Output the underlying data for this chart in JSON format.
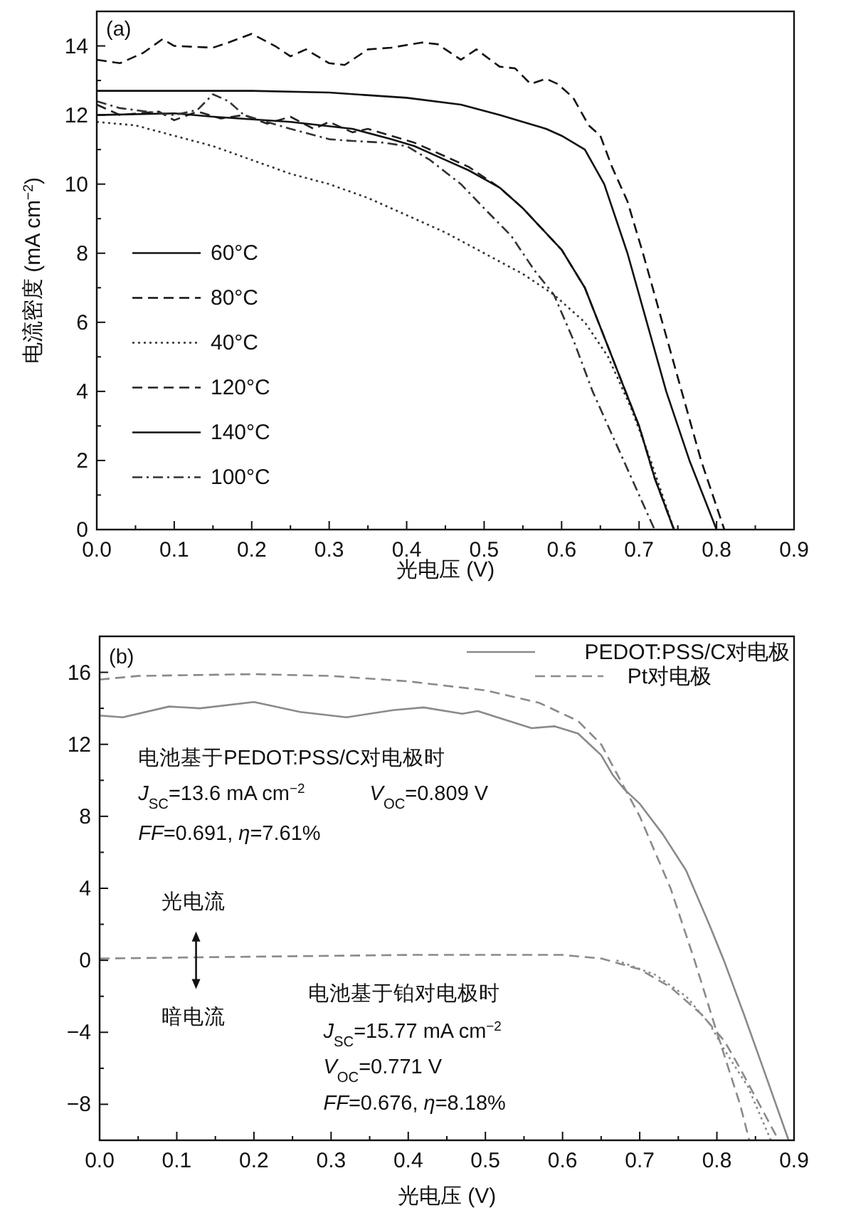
{
  "chart_data": [
    {
      "type": "line",
      "xlabel": "光电压 (V)",
      "ylabel": "电流密度 (mA cm$^{−2}$)",
      "annotations": [
        "(a)"
      ],
      "xlim": [
        0,
        0.9
      ],
      "ylim": [
        0,
        15
      ],
      "xticks": [
        {
          "value": 0,
          "label": "0.0"
        },
        0.1,
        0.2,
        0.3,
        0.4,
        0.5,
        0.6,
        0.7,
        0.8,
        0.9
      ],
      "yticks": [
        0,
        2,
        4,
        6,
        8,
        10,
        12,
        14
      ],
      "legend": "left",
      "grid": false,
      "marker": "none",
      "series": [
        {
          "name": "60°C",
          "color": "#111111",
          "line_style": "solid",
          "x": [
            0,
            0.1,
            0.2,
            0.3,
            0.4,
            0.47,
            0.52,
            0.55,
            0.58,
            0.6,
            0.63,
            0.655,
            0.685,
            0.71,
            0.735,
            0.765,
            0.8
          ],
          "values": [
            12.7,
            12.7,
            12.7,
            12.65,
            12.5,
            12.3,
            12.0,
            11.8,
            11.6,
            11.4,
            11.0,
            10.0,
            8.0,
            6.0,
            4.0,
            2.0,
            0
          ]
        },
        {
          "name": "80°C",
          "color": "#111111",
          "line_style": "dashed",
          "x": [
            0,
            0.03,
            0.06,
            0.085,
            0.1,
            0.15,
            0.17,
            0.2,
            0.23,
            0.25,
            0.27,
            0.3,
            0.32,
            0.35,
            0.38,
            0.42,
            0.44,
            0.47,
            0.49,
            0.52,
            0.54,
            0.56,
            0.58,
            0.595,
            0.615,
            0.635,
            0.65,
            0.665,
            0.685,
            0.705,
            0.73,
            0.755,
            0.78,
            0.81
          ],
          "values": [
            13.6,
            13.5,
            13.8,
            14.2,
            14.0,
            13.95,
            14.1,
            14.35,
            14.0,
            13.7,
            13.9,
            13.5,
            13.45,
            13.9,
            13.95,
            14.1,
            14.05,
            13.6,
            13.9,
            13.4,
            13.35,
            12.9,
            13.05,
            12.9,
            12.5,
            11.7,
            11.4,
            10.5,
            9.5,
            8.0,
            6.0,
            4.0,
            2.0,
            0
          ]
        },
        {
          "name": "40°C",
          "color": "#333333",
          "line_style": "dotted",
          "x": [
            0,
            0.05,
            0.1,
            0.15,
            0.2,
            0.25,
            0.3,
            0.35,
            0.4,
            0.45,
            0.5,
            0.55,
            0.59,
            0.63,
            0.66,
            0.69,
            0.715,
            0.745
          ],
          "values": [
            11.8,
            11.7,
            11.4,
            11.1,
            10.7,
            10.3,
            10.0,
            9.6,
            9.1,
            8.6,
            8.0,
            7.4,
            6.8,
            6.0,
            5.0,
            3.5,
            2.0,
            0
          ]
        },
        {
          "name": "120°C",
          "color": "#222222",
          "line_style": "dashed",
          "x": [
            0,
            0.03,
            0.08,
            0.1,
            0.13,
            0.16,
            0.19,
            0.22,
            0.25,
            0.28,
            0.3,
            0.33,
            0.35,
            0.38,
            0.41,
            0.44,
            0.48,
            0.52,
            0.55,
            0.6,
            0.63,
            0.665,
            0.7,
            0.72,
            0.745
          ],
          "values": [
            12.3,
            12.0,
            12.1,
            11.85,
            12.1,
            11.9,
            12.0,
            11.75,
            11.95,
            11.6,
            11.8,
            11.5,
            11.6,
            11.4,
            11.2,
            10.9,
            10.5,
            9.9,
            9.3,
            8.1,
            7.0,
            5.0,
            3.0,
            1.5,
            0
          ]
        },
        {
          "name": "140°C",
          "color": "#111111",
          "line_style": "solid",
          "x": [
            0,
            0.1,
            0.15,
            0.25,
            0.33,
            0.38,
            0.41,
            0.44,
            0.48,
            0.52,
            0.55,
            0.6,
            0.63,
            0.665,
            0.7,
            0.72,
            0.745
          ],
          "values": [
            12.0,
            12.05,
            11.95,
            11.8,
            11.6,
            11.3,
            11.1,
            10.8,
            10.4,
            9.9,
            9.3,
            8.1,
            7.0,
            5.0,
            3.0,
            1.5,
            0
          ]
        },
        {
          "name": "100°C",
          "color": "#333333",
          "line_style": "dashdot",
          "x": [
            0,
            0.03,
            0.1,
            0.13,
            0.15,
            0.17,
            0.19,
            0.25,
            0.3,
            0.33,
            0.37,
            0.4,
            0.43,
            0.47,
            0.5,
            0.535,
            0.565,
            0.59,
            0.615,
            0.64,
            0.68,
            0.72
          ],
          "values": [
            12.4,
            12.2,
            12.0,
            12.15,
            12.6,
            12.4,
            12.0,
            11.6,
            11.3,
            11.25,
            11.2,
            11.1,
            10.7,
            10.0,
            9.3,
            8.5,
            7.5,
            6.8,
            5.5,
            4.0,
            2.0,
            0
          ]
        }
      ]
    },
    {
      "type": "line",
      "xlabel": "光电压 (V)",
      "annotations": [
        "(b)",
        "电池基于PEDOT:PSS/C对电极时",
        "*J*$_{SC}$=13.6 mA cm$^{−2}$",
        "*V*$_{OC}$=0.809 V",
        "*FF*=0.691, *η*=7.61%",
        "光电流",
        "暗电流",
        "电池基于铂对电极时",
        "*J*$_{SC}$=15.77 mA cm$^{−2}$",
        "*V*$_{OC}$=0.771 V",
        "*FF*=0.676, *η*=8.18%"
      ],
      "xlim": [
        0,
        0.9
      ],
      "ylim": [
        -10,
        18
      ],
      "xticks": [
        {
          "value": 0,
          "label": "0.0"
        },
        0.1,
        0.2,
        0.3,
        0.4,
        0.5,
        0.6,
        0.7,
        0.8,
        0.9
      ],
      "yticks": [
        {
          "value": -8,
          "label": "−8"
        },
        {
          "value": -4,
          "label": "−4"
        },
        0,
        4,
        8,
        12,
        16
      ],
      "legend": "top right",
      "grid": false,
      "marker": "none",
      "series": [
        {
          "name": "PEDOT:PSS/C对电极",
          "color": "#8a8a8a",
          "line_style": "solid",
          "x": [
            0,
            0.03,
            0.09,
            0.13,
            0.2,
            0.26,
            0.32,
            0.38,
            0.42,
            0.47,
            0.49,
            0.53,
            0.56,
            0.59,
            0.62,
            0.64,
            0.65,
            0.665,
            0.68,
            0.7,
            0.73,
            0.76,
            0.79,
            0.809,
            0.835,
            0.86,
            0.893
          ],
          "values": [
            13.6,
            13.5,
            14.1,
            14.0,
            14.35,
            13.8,
            13.5,
            13.9,
            14.05,
            13.7,
            13.85,
            13.3,
            12.9,
            13.0,
            12.6,
            11.8,
            11.4,
            10.3,
            9.5,
            8.7,
            7.0,
            5.0,
            2.0,
            0,
            -3,
            -6,
            -10
          ]
        },
        {
          "name": "Pt对电极",
          "color": "#8a8a8a",
          "line_style": "dashed",
          "x": [
            0,
            0.05,
            0.2,
            0.3,
            0.4,
            0.5,
            0.57,
            0.62,
            0.65,
            0.675,
            0.7,
            0.72,
            0.74,
            0.771,
            0.8,
            0.83,
            0.842
          ],
          "values": [
            15.6,
            15.8,
            15.9,
            15.8,
            15.5,
            15.0,
            14.3,
            13.3,
            12.0,
            10.0,
            8.0,
            6.0,
            4.0,
            0,
            -4,
            -8,
            -10
          ]
        },
        {
          "color": "#8a8a8a",
          "line_style": "dashed",
          "x": [
            0,
            0.2,
            0.4,
            0.6,
            0.65,
            0.7,
            0.74,
            0.78,
            0.81,
            0.83,
            0.855,
            0.88
          ],
          "values": [
            0.1,
            0.2,
            0.3,
            0.3,
            0.1,
            -0.5,
            -1.5,
            -3,
            -4.5,
            -6,
            -8,
            -10
          ]
        },
        {
          "color": "#8a8a8a",
          "line_style": "dotted",
          "x": [
            0.67,
            0.72,
            0.76,
            0.79,
            0.81,
            0.84,
            0.87
          ],
          "values": [
            0,
            -0.8,
            -2,
            -3.5,
            -5,
            -7,
            -10
          ]
        }
      ]
    }
  ]
}
